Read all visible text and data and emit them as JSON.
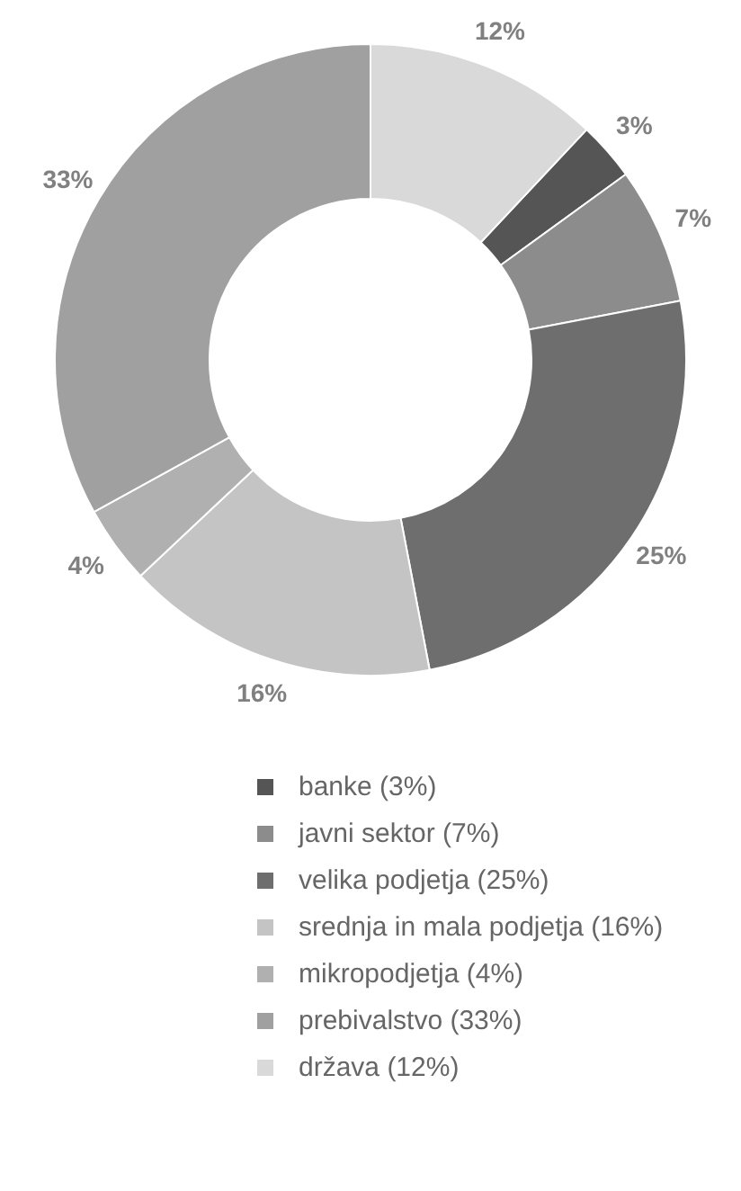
{
  "chart_data": {
    "type": "donut",
    "categories": [
      "banke (3%)",
      "javni sektor (7%)",
      "velika podjetja (25%)",
      "srednja in mala podjetja (16%)",
      "mikropodjetja (4%)",
      "prebivalstvo (33%)",
      "država (12%)"
    ],
    "values": [
      3,
      7,
      25,
      16,
      4,
      33,
      12
    ],
    "colors": [
      "#555555",
      "#8c8c8c",
      "#6e6e6e",
      "#c4c4c4",
      "#b0b0b0",
      "#a0a0a0",
      "#d9d9d9"
    ],
    "value_labels": [
      "3%",
      "7%",
      "25%",
      "16%",
      "4%",
      "33%",
      "12%"
    ],
    "legend": "bottom"
  }
}
